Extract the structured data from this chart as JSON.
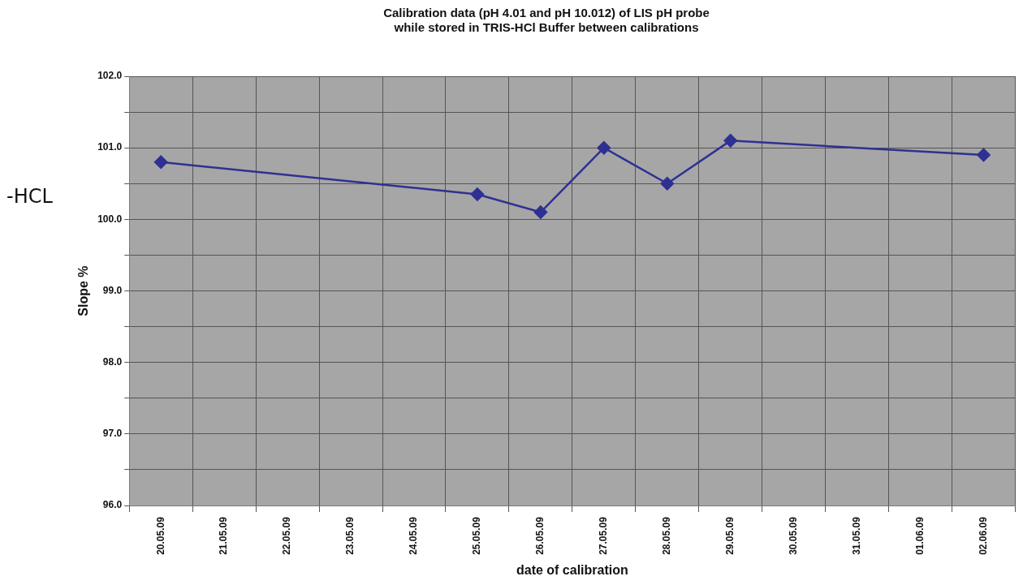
{
  "chart_data": {
    "type": "line",
    "title": "Calibration data (pH 4.01 and pH 10.012) of LIS pH probe\nwhile stored in TRIS-HCl Buffer between calibrations",
    "xlabel": "date of calibration",
    "ylabel": "Slope %",
    "annotations": [
      "-HCL"
    ],
    "categories": [
      "20.05.09",
      "21.05.09",
      "22.05.09",
      "23.05.09",
      "24.05.09",
      "25.05.09",
      "26.05.09",
      "27.05.09",
      "28.05.09",
      "29.05.09",
      "30.05.09",
      "31.05.09",
      "01.06.09",
      "02.06.09"
    ],
    "series": [
      {
        "color": "#2e3192",
        "values": [
          100.8,
          null,
          null,
          null,
          null,
          100.35,
          100.1,
          101.0,
          100.5,
          101.1,
          null,
          null,
          null,
          100.9
        ]
      }
    ],
    "ylim": [
      96,
      102
    ],
    "yticks": [
      {
        "value": 96,
        "label": "96.0"
      },
      {
        "value": 96.5,
        "label": null
      },
      {
        "value": 97,
        "label": "97.0"
      },
      {
        "value": 97.5,
        "label": null
      },
      {
        "value": 98,
        "label": "98.0"
      },
      {
        "value": 98.5,
        "label": null
      },
      {
        "value": 99,
        "label": "99.0"
      },
      {
        "value": 99.5,
        "label": null
      },
      {
        "value": 100,
        "label": "100.0"
      },
      {
        "value": 100.5,
        "label": null
      },
      {
        "value": 101,
        "label": "101.0"
      },
      {
        "value": 101.5,
        "label": null
      },
      {
        "value": 102,
        "label": "102.0"
      }
    ],
    "grid": true,
    "legend": false,
    "marker": "diamond",
    "line_style": "solid"
  }
}
